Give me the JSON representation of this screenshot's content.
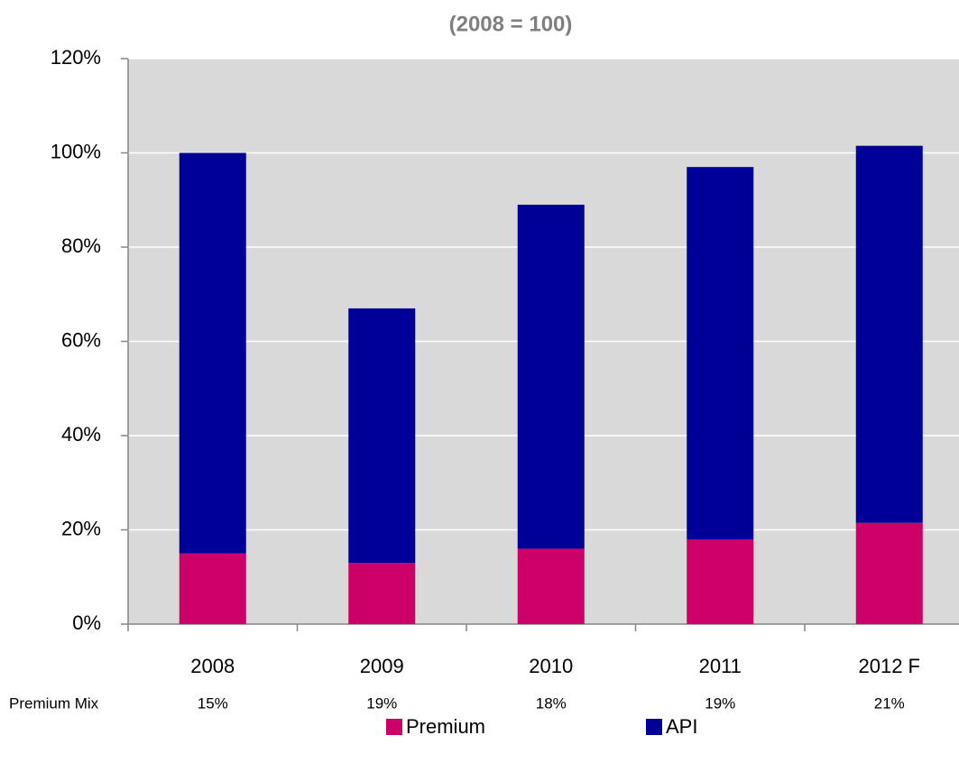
{
  "chart_data": {
    "type": "stacked_bar",
    "title": "(2008 = 100)",
    "categories": [
      "2008",
      "2009",
      "2010",
      "2011",
      "2012 F"
    ],
    "series": [
      {
        "name": "Premium",
        "color": "#cc0066",
        "values": [
          15,
          13,
          16,
          18,
          21.5
        ]
      },
      {
        "name": "API",
        "color": "#000099",
        "values": [
          85,
          54,
          73,
          79,
          80
        ]
      }
    ],
    "ylim": [
      0,
      120
    ],
    "yticks": [
      {
        "value": 0,
        "label": "0%"
      },
      {
        "value": 20,
        "label": "20%"
      },
      {
        "value": 40,
        "label": "40%"
      },
      {
        "value": 60,
        "label": "60%"
      },
      {
        "value": 80,
        "label": "80%"
      },
      {
        "value": 100,
        "label": "100%"
      },
      {
        "value": 120,
        "label": "120%"
      }
    ],
    "grid": true,
    "legend": "bottom",
    "mix_row": {
      "label": "Premium Mix",
      "values": [
        "15%",
        "19%",
        "18%",
        "19%",
        "21%"
      ]
    }
  }
}
